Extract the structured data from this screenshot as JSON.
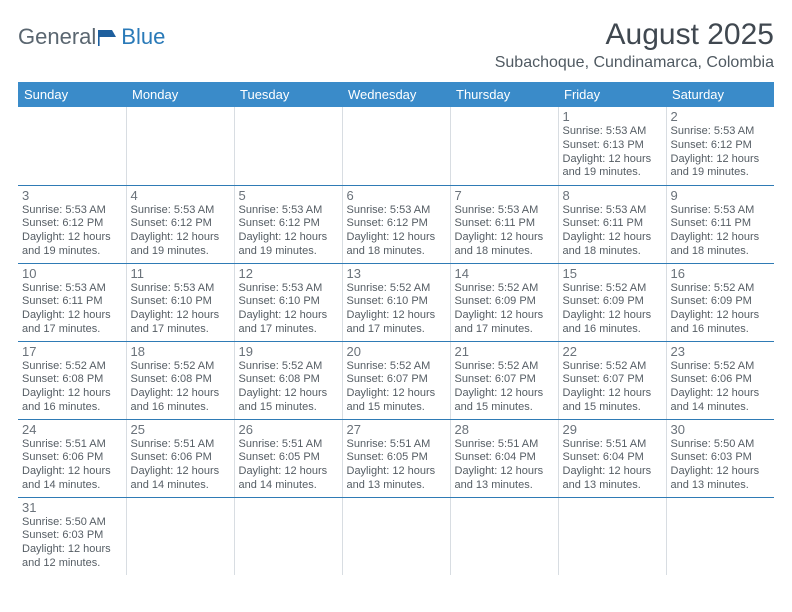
{
  "logo": {
    "text1": "General",
    "text2": "Blue"
  },
  "title": "August 2025",
  "location": "Subachoque, Cundinamarca, Colombia",
  "colors": {
    "header_bg": "#3a8bc9",
    "header_text": "#ffffff",
    "row_border": "#2f7bb5",
    "daynum": "#6a727a",
    "body_text": "#555d64"
  },
  "day_headers": [
    "Sunday",
    "Monday",
    "Tuesday",
    "Wednesday",
    "Thursday",
    "Friday",
    "Saturday"
  ],
  "weeks": [
    [
      null,
      null,
      null,
      null,
      null,
      {
        "n": "1",
        "sr": "Sunrise: 5:53 AM",
        "ss": "Sunset: 6:13 PM",
        "d1": "Daylight: 12 hours",
        "d2": "and 19 minutes."
      },
      {
        "n": "2",
        "sr": "Sunrise: 5:53 AM",
        "ss": "Sunset: 6:12 PM",
        "d1": "Daylight: 12 hours",
        "d2": "and 19 minutes."
      }
    ],
    [
      {
        "n": "3",
        "sr": "Sunrise: 5:53 AM",
        "ss": "Sunset: 6:12 PM",
        "d1": "Daylight: 12 hours",
        "d2": "and 19 minutes."
      },
      {
        "n": "4",
        "sr": "Sunrise: 5:53 AM",
        "ss": "Sunset: 6:12 PM",
        "d1": "Daylight: 12 hours",
        "d2": "and 19 minutes."
      },
      {
        "n": "5",
        "sr": "Sunrise: 5:53 AM",
        "ss": "Sunset: 6:12 PM",
        "d1": "Daylight: 12 hours",
        "d2": "and 19 minutes."
      },
      {
        "n": "6",
        "sr": "Sunrise: 5:53 AM",
        "ss": "Sunset: 6:12 PM",
        "d1": "Daylight: 12 hours",
        "d2": "and 18 minutes."
      },
      {
        "n": "7",
        "sr": "Sunrise: 5:53 AM",
        "ss": "Sunset: 6:11 PM",
        "d1": "Daylight: 12 hours",
        "d2": "and 18 minutes."
      },
      {
        "n": "8",
        "sr": "Sunrise: 5:53 AM",
        "ss": "Sunset: 6:11 PM",
        "d1": "Daylight: 12 hours",
        "d2": "and 18 minutes."
      },
      {
        "n": "9",
        "sr": "Sunrise: 5:53 AM",
        "ss": "Sunset: 6:11 PM",
        "d1": "Daylight: 12 hours",
        "d2": "and 18 minutes."
      }
    ],
    [
      {
        "n": "10",
        "sr": "Sunrise: 5:53 AM",
        "ss": "Sunset: 6:11 PM",
        "d1": "Daylight: 12 hours",
        "d2": "and 17 minutes."
      },
      {
        "n": "11",
        "sr": "Sunrise: 5:53 AM",
        "ss": "Sunset: 6:10 PM",
        "d1": "Daylight: 12 hours",
        "d2": "and 17 minutes."
      },
      {
        "n": "12",
        "sr": "Sunrise: 5:53 AM",
        "ss": "Sunset: 6:10 PM",
        "d1": "Daylight: 12 hours",
        "d2": "and 17 minutes."
      },
      {
        "n": "13",
        "sr": "Sunrise: 5:52 AM",
        "ss": "Sunset: 6:10 PM",
        "d1": "Daylight: 12 hours",
        "d2": "and 17 minutes."
      },
      {
        "n": "14",
        "sr": "Sunrise: 5:52 AM",
        "ss": "Sunset: 6:09 PM",
        "d1": "Daylight: 12 hours",
        "d2": "and 17 minutes."
      },
      {
        "n": "15",
        "sr": "Sunrise: 5:52 AM",
        "ss": "Sunset: 6:09 PM",
        "d1": "Daylight: 12 hours",
        "d2": "and 16 minutes."
      },
      {
        "n": "16",
        "sr": "Sunrise: 5:52 AM",
        "ss": "Sunset: 6:09 PM",
        "d1": "Daylight: 12 hours",
        "d2": "and 16 minutes."
      }
    ],
    [
      {
        "n": "17",
        "sr": "Sunrise: 5:52 AM",
        "ss": "Sunset: 6:08 PM",
        "d1": "Daylight: 12 hours",
        "d2": "and 16 minutes."
      },
      {
        "n": "18",
        "sr": "Sunrise: 5:52 AM",
        "ss": "Sunset: 6:08 PM",
        "d1": "Daylight: 12 hours",
        "d2": "and 16 minutes."
      },
      {
        "n": "19",
        "sr": "Sunrise: 5:52 AM",
        "ss": "Sunset: 6:08 PM",
        "d1": "Daylight: 12 hours",
        "d2": "and 15 minutes."
      },
      {
        "n": "20",
        "sr": "Sunrise: 5:52 AM",
        "ss": "Sunset: 6:07 PM",
        "d1": "Daylight: 12 hours",
        "d2": "and 15 minutes."
      },
      {
        "n": "21",
        "sr": "Sunrise: 5:52 AM",
        "ss": "Sunset: 6:07 PM",
        "d1": "Daylight: 12 hours",
        "d2": "and 15 minutes."
      },
      {
        "n": "22",
        "sr": "Sunrise: 5:52 AM",
        "ss": "Sunset: 6:07 PM",
        "d1": "Daylight: 12 hours",
        "d2": "and 15 minutes."
      },
      {
        "n": "23",
        "sr": "Sunrise: 5:52 AM",
        "ss": "Sunset: 6:06 PM",
        "d1": "Daylight: 12 hours",
        "d2": "and 14 minutes."
      }
    ],
    [
      {
        "n": "24",
        "sr": "Sunrise: 5:51 AM",
        "ss": "Sunset: 6:06 PM",
        "d1": "Daylight: 12 hours",
        "d2": "and 14 minutes."
      },
      {
        "n": "25",
        "sr": "Sunrise: 5:51 AM",
        "ss": "Sunset: 6:06 PM",
        "d1": "Daylight: 12 hours",
        "d2": "and 14 minutes."
      },
      {
        "n": "26",
        "sr": "Sunrise: 5:51 AM",
        "ss": "Sunset: 6:05 PM",
        "d1": "Daylight: 12 hours",
        "d2": "and 14 minutes."
      },
      {
        "n": "27",
        "sr": "Sunrise: 5:51 AM",
        "ss": "Sunset: 6:05 PM",
        "d1": "Daylight: 12 hours",
        "d2": "and 13 minutes."
      },
      {
        "n": "28",
        "sr": "Sunrise: 5:51 AM",
        "ss": "Sunset: 6:04 PM",
        "d1": "Daylight: 12 hours",
        "d2": "and 13 minutes."
      },
      {
        "n": "29",
        "sr": "Sunrise: 5:51 AM",
        "ss": "Sunset: 6:04 PM",
        "d1": "Daylight: 12 hours",
        "d2": "and 13 minutes."
      },
      {
        "n": "30",
        "sr": "Sunrise: 5:50 AM",
        "ss": "Sunset: 6:03 PM",
        "d1": "Daylight: 12 hours",
        "d2": "and 13 minutes."
      }
    ],
    [
      {
        "n": "31",
        "sr": "Sunrise: 5:50 AM",
        "ss": "Sunset: 6:03 PM",
        "d1": "Daylight: 12 hours",
        "d2": "and 12 minutes."
      },
      null,
      null,
      null,
      null,
      null,
      null
    ]
  ]
}
